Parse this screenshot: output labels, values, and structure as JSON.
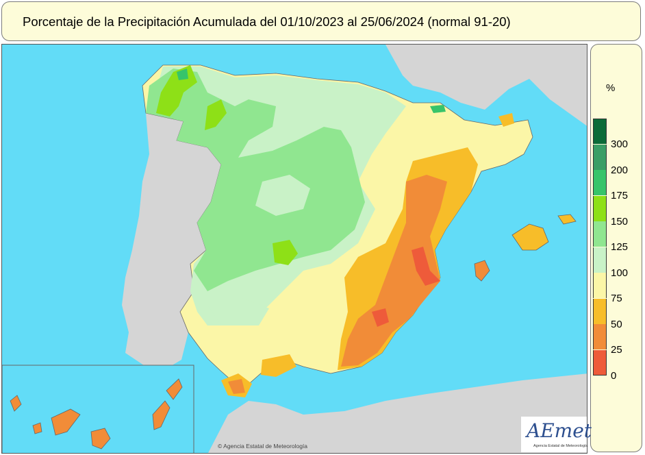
{
  "title": "Porcentaje de la Precipitación Acumulada del 01/10/2023 al 25/06/2024 (normal 91-20)",
  "legend": {
    "unit": "%",
    "bins": [
      {
        "label": "300",
        "color": "#0b6b38"
      },
      {
        "label": "200",
        "color": "#3a9e66"
      },
      {
        "label": "175",
        "color": "#37c46a"
      },
      {
        "label": "150",
        "color": "#8ee017"
      },
      {
        "label": "125",
        "color": "#90e690"
      },
      {
        "label": "100",
        "color": "#c9f2c7"
      },
      {
        "label": "75",
        "color": "#fbf6a7"
      },
      {
        "label": "50",
        "color": "#f7bd29"
      },
      {
        "label": "25",
        "color": "#f18c38"
      },
      {
        "label": "0",
        "color": "#ee5b3a"
      }
    ]
  },
  "colors": {
    "sea": "#62dcf7",
    "land_outside": "#d5d5d5",
    "panel_bg": "#fdfcd9"
  },
  "logo": {
    "name": "AEmet",
    "subtitle": "Agencia Estatal de Meteorología"
  },
  "copyright": "© Agencia Estatal de Meteorología"
}
